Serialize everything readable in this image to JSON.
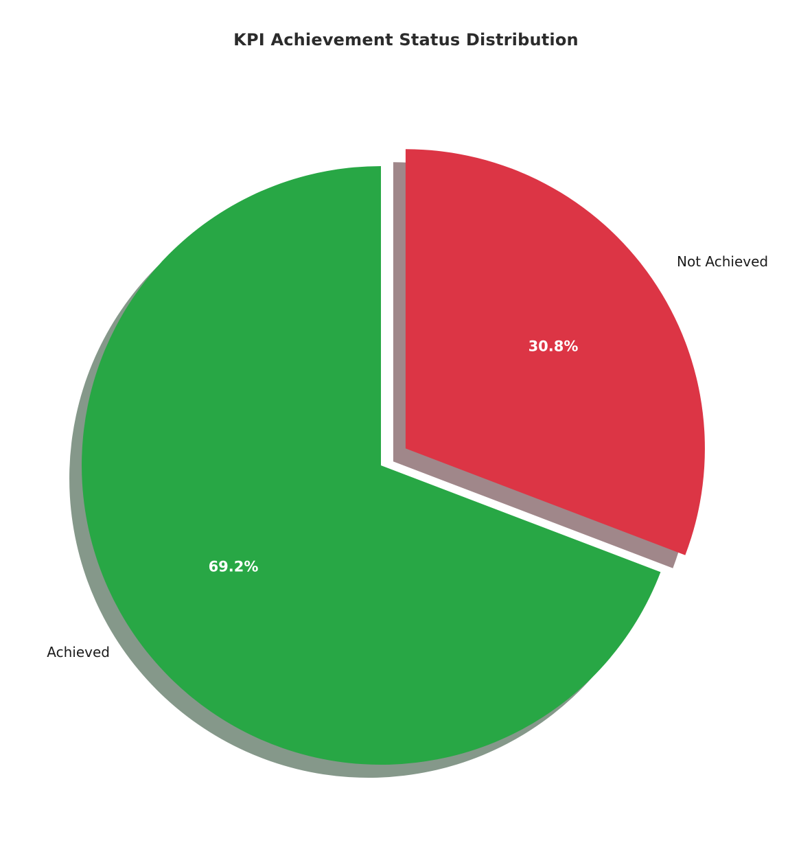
{
  "chart_data": {
    "type": "pie",
    "title": "KPI Achievement Status Distribution",
    "slices": [
      {
        "label": "Achieved",
        "value": 69.2,
        "pct_label": "69.2%",
        "color": "#28a745",
        "explode": 0.0
      },
      {
        "label": "Not Achieved",
        "value": 30.8,
        "pct_label": "30.8%",
        "color": "#dc3545",
        "explode": 0.1
      }
    ],
    "start_angle_deg": 90,
    "direction": "counterclockwise",
    "shadow": true,
    "legend_position": "none",
    "title_color": "#2b2b2b",
    "label_color": "#1a1a1a",
    "pct_text_color": "#ffffff"
  }
}
